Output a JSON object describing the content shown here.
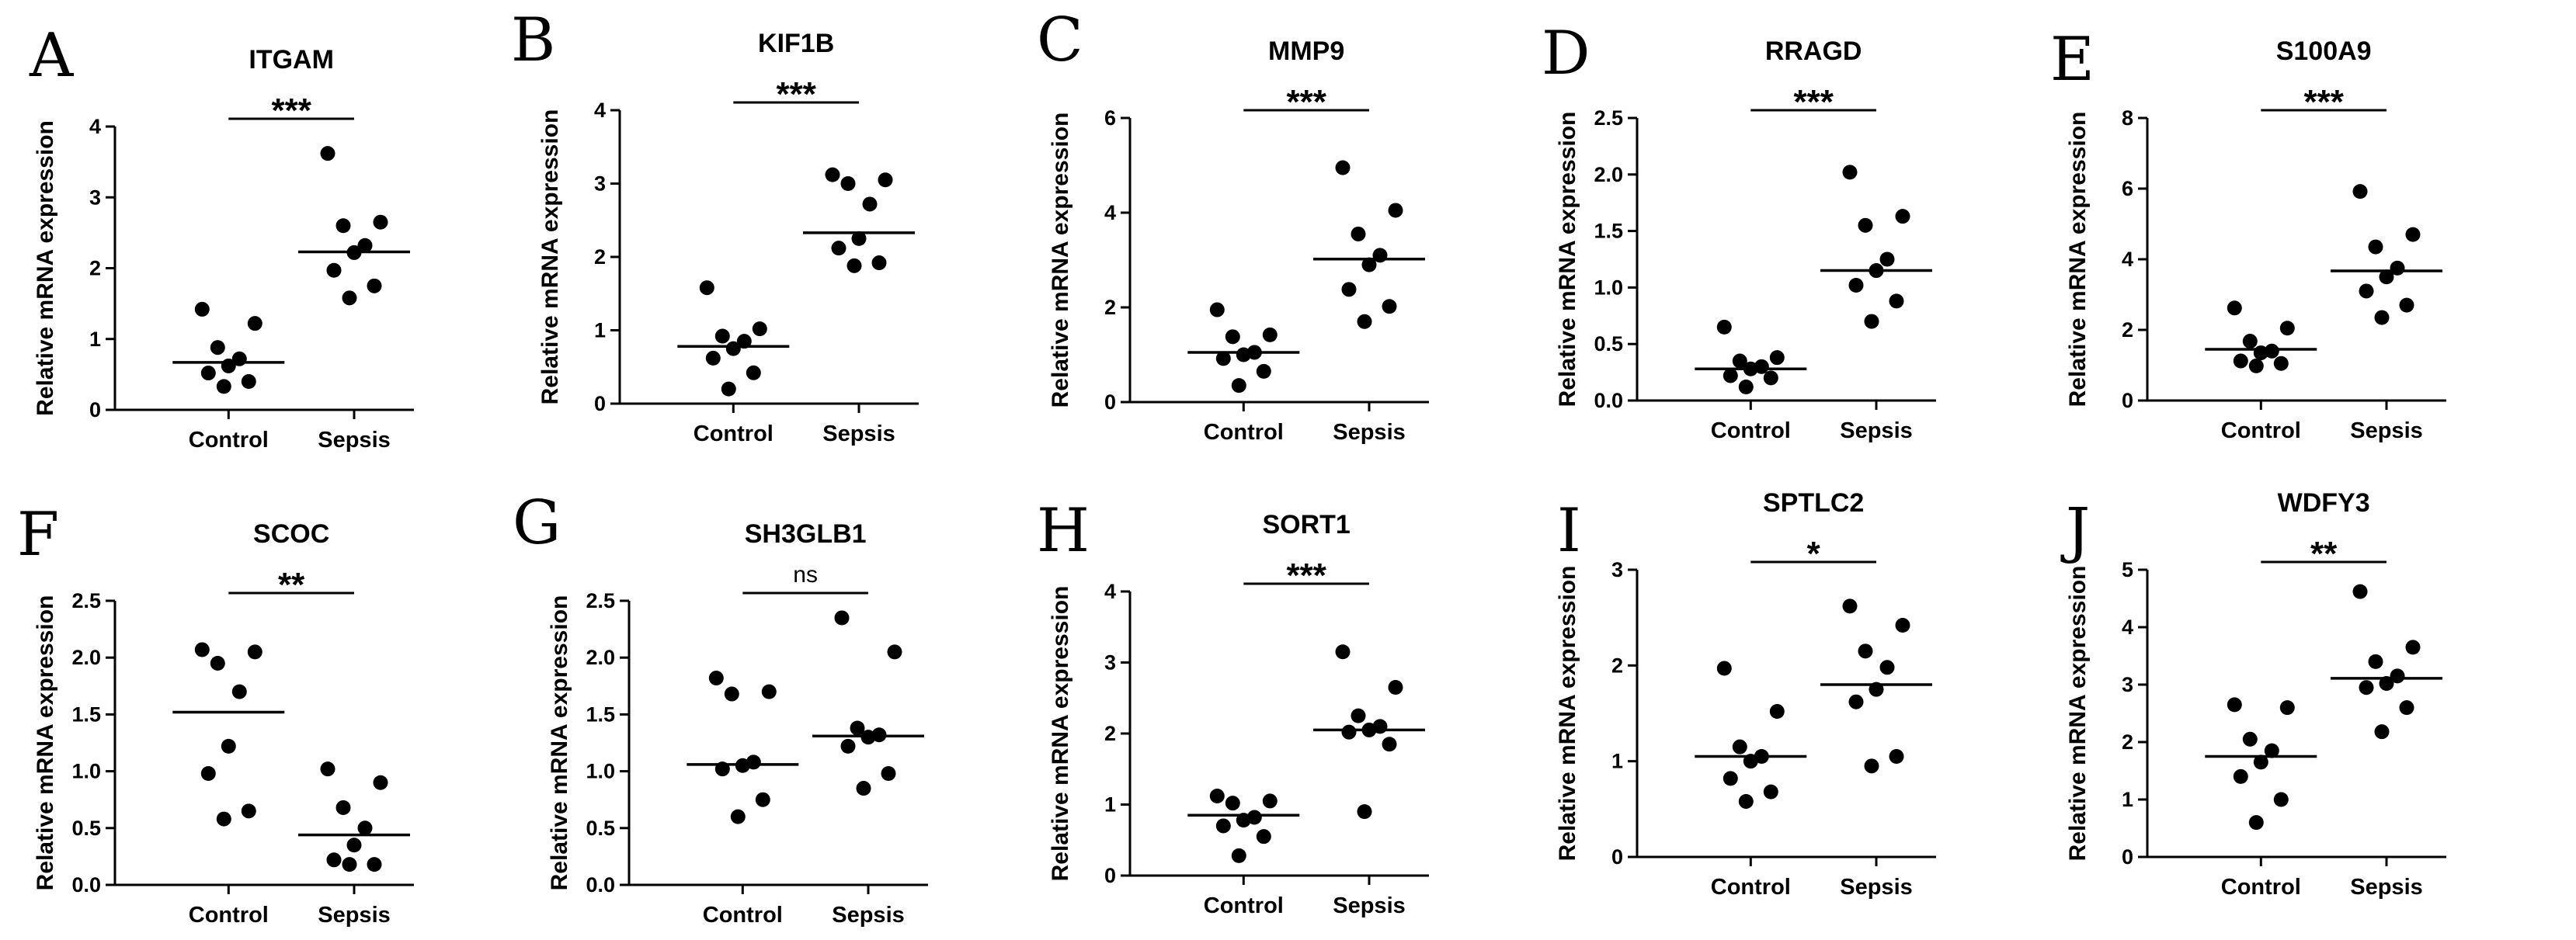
{
  "chart_data": [
    {
      "label": "A",
      "type": "scatter",
      "title": "ITGAM",
      "ylabel": "Relative mRNA expression",
      "categories": [
        "Control",
        "Sepsis"
      ],
      "ylim": [
        0,
        4
      ],
      "yticks": [
        "0",
        "1",
        "2",
        "3",
        "4"
      ],
      "significance": "***",
      "series": [
        {
          "values": [
            1.42,
            1.22,
            0.88,
            0.72,
            0.62,
            0.52,
            0.4,
            0.33
          ],
          "mean": 0.67
        },
        {
          "values": [
            3.62,
            2.65,
            2.6,
            2.32,
            2.22,
            1.97,
            1.75,
            1.58
          ],
          "mean": 2.23
        }
      ]
    },
    {
      "label": "B",
      "type": "scatter",
      "title": "KIF1B",
      "ylabel": "Relative mRNA expression",
      "categories": [
        "Control",
        "Sepsis"
      ],
      "ylim": [
        0,
        4
      ],
      "yticks": [
        "0",
        "1",
        "2",
        "3",
        "4"
      ],
      "significance": "***",
      "series": [
        {
          "values": [
            1.58,
            1.02,
            0.92,
            0.85,
            0.75,
            0.62,
            0.42,
            0.2
          ],
          "mean": 0.78
        },
        {
          "values": [
            3.12,
            3.05,
            3.0,
            2.72,
            2.25,
            2.12,
            1.92,
            1.88
          ],
          "mean": 2.33
        }
      ]
    },
    {
      "label": "C",
      "type": "scatter",
      "title": "MMP9",
      "ylabel": "Relative mRNA expression",
      "categories": [
        "Control",
        "Sepsis"
      ],
      "ylim": [
        0,
        6
      ],
      "yticks": [
        "0",
        "2",
        "4",
        "6"
      ],
      "significance": "***",
      "series": [
        {
          "values": [
            1.95,
            1.42,
            1.38,
            1.05,
            1.0,
            0.92,
            0.65,
            0.35
          ],
          "mean": 1.05
        },
        {
          "values": [
            4.95,
            4.05,
            3.55,
            3.1,
            2.9,
            2.38,
            2.02,
            1.7
          ],
          "mean": 3.02
        }
      ]
    },
    {
      "label": "D",
      "type": "scatter",
      "title": "RRAGD",
      "ylabel": "Relative mRNA expression",
      "categories": [
        "Control",
        "Sepsis"
      ],
      "ylim": [
        0,
        2.5
      ],
      "yticks": [
        "0.0",
        "0.5",
        "1.0",
        "1.5",
        "2.0",
        "2.5"
      ],
      "significance": "***",
      "series": [
        {
          "values": [
            0.65,
            0.38,
            0.35,
            0.3,
            0.28,
            0.22,
            0.2,
            0.12
          ],
          "mean": 0.28
        },
        {
          "values": [
            2.02,
            1.63,
            1.55,
            1.25,
            1.15,
            1.02,
            0.88,
            0.7
          ],
          "mean": 1.15
        }
      ]
    },
    {
      "label": "E",
      "type": "scatter",
      "title": "S100A9",
      "ylabel": "Relative mRNA expression",
      "categories": [
        "Control",
        "Sepsis"
      ],
      "ylim": [
        0,
        8
      ],
      "yticks": [
        "0",
        "2",
        "4",
        "6",
        "8"
      ],
      "significance": "***",
      "series": [
        {
          "values": [
            2.62,
            2.05,
            1.68,
            1.4,
            1.35,
            1.12,
            1.05,
            0.98
          ],
          "mean": 1.45
        },
        {
          "values": [
            5.92,
            4.7,
            4.35,
            3.75,
            3.5,
            3.1,
            2.7,
            2.35
          ],
          "mean": 3.67
        }
      ]
    },
    {
      "label": "F",
      "type": "scatter",
      "title": "SCOC",
      "ylabel": "Relative mRNA expression",
      "categories": [
        "Control",
        "Sepsis"
      ],
      "ylim": [
        0,
        2.5
      ],
      "yticks": [
        "0.0",
        "0.5",
        "1.0",
        "1.5",
        "2.0",
        "2.5"
      ],
      "significance": "**",
      "series": [
        {
          "values": [
            2.07,
            2.05,
            1.95,
            1.7,
            1.22,
            0.98,
            0.65,
            0.58
          ],
          "mean": 1.52
        },
        {
          "values": [
            1.02,
            0.9,
            0.68,
            0.5,
            0.35,
            0.22,
            0.18,
            0.18
          ],
          "mean": 0.44
        }
      ]
    },
    {
      "label": "G",
      "type": "scatter",
      "title": "SH3GLB1",
      "ylabel": "Relative mRNA expression",
      "categories": [
        "Control",
        "Sepsis"
      ],
      "ylim": [
        0,
        2.5
      ],
      "yticks": [
        "0.0",
        "0.5",
        "1.0",
        "1.5",
        "2.0",
        "2.5"
      ],
      "significance": "ns",
      "series": [
        {
          "values": [
            1.82,
            1.7,
            1.68,
            1.08,
            1.05,
            1.02,
            0.75,
            0.6
          ],
          "mean": 1.06
        },
        {
          "values": [
            2.35,
            2.05,
            1.38,
            1.32,
            1.3,
            1.22,
            0.98,
            0.85
          ],
          "mean": 1.31
        }
      ]
    },
    {
      "label": "H",
      "type": "scatter",
      "title": "SORT1",
      "ylabel": "Relative mRNA expression",
      "categories": [
        "Control",
        "Sepsis"
      ],
      "ylim": [
        0,
        4
      ],
      "yticks": [
        "0",
        "1",
        "2",
        "3",
        "4"
      ],
      "significance": "***",
      "series": [
        {
          "values": [
            1.12,
            1.05,
            1.02,
            0.82,
            0.78,
            0.7,
            0.55,
            0.28
          ],
          "mean": 0.85
        },
        {
          "values": [
            3.15,
            2.65,
            2.25,
            2.1,
            2.05,
            2.02,
            1.85,
            0.9
          ],
          "mean": 2.05
        }
      ]
    },
    {
      "label": "I",
      "type": "scatter",
      "title": "SPTLC2",
      "ylabel": "Relative mRNA expression",
      "categories": [
        "Control",
        "Sepsis"
      ],
      "ylim": [
        0,
        3
      ],
      "yticks": [
        "0",
        "1",
        "2",
        "3"
      ],
      "significance": "*",
      "series": [
        {
          "values": [
            1.97,
            1.52,
            1.15,
            1.05,
            1.0,
            0.82,
            0.68,
            0.58
          ],
          "mean": 1.05
        },
        {
          "values": [
            2.62,
            2.42,
            2.15,
            1.98,
            1.75,
            1.62,
            1.05,
            0.95
          ],
          "mean": 1.8
        }
      ]
    },
    {
      "label": "J",
      "type": "scatter",
      "title": "WDFY3",
      "ylabel": "Relative mRNA expression",
      "categories": [
        "Control",
        "Sepsis"
      ],
      "ylim": [
        0,
        5
      ],
      "yticks": [
        "0",
        "1",
        "2",
        "3",
        "4",
        "5"
      ],
      "significance": "**",
      "series": [
        {
          "values": [
            2.65,
            2.6,
            2.05,
            1.85,
            1.65,
            1.4,
            1.0,
            0.6
          ],
          "mean": 1.75
        },
        {
          "values": [
            4.62,
            3.65,
            3.4,
            3.15,
            3.02,
            2.95,
            2.6,
            2.18
          ],
          "mean": 3.11
        }
      ]
    }
  ]
}
